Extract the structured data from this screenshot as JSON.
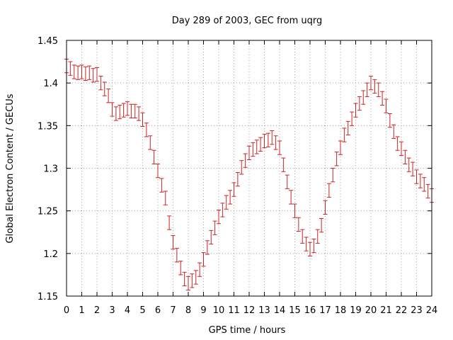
{
  "chart_data": {
    "type": "scatter",
    "title": "Day 289 of 2003, GEC from uqrg",
    "xlabel": "GPS time / hours",
    "ylabel": "Global Electron Content / GECUs",
    "xlim": [
      0,
      24
    ],
    "ylim": [
      1.15,
      1.45
    ],
    "grid": true,
    "xticks": [
      "0",
      "1",
      "2",
      "3",
      "4",
      "5",
      "6",
      "7",
      "8",
      "9",
      "10",
      "11",
      "12",
      "13",
      "14",
      "15",
      "16",
      "17",
      "18",
      "19",
      "20",
      "21",
      "22",
      "23",
      "24"
    ],
    "yticks": [
      "1.15",
      "1.2",
      "1.25",
      "1.3",
      "1.35",
      "1.4",
      "1.45"
    ],
    "color": "#cc2222",
    "error": 0.008,
    "series": [
      {
        "x": [
          0,
          0.25,
          0.5,
          0.75,
          1,
          1.25,
          1.5,
          1.75,
          2,
          2.25,
          2.5,
          2.75,
          3,
          3.25,
          3.5,
          3.75,
          4,
          4.25,
          4.5,
          4.75,
          5,
          5.25,
          5.5,
          5.75,
          6,
          6.25,
          6.5,
          6.75,
          7,
          7.25,
          7.5,
          7.75,
          8,
          8.25,
          8.5,
          8.75,
          9,
          9.25,
          9.5,
          9.75,
          10,
          10.25,
          10.5,
          10.75,
          11,
          11.25,
          11.5,
          11.75,
          12,
          12.25,
          12.5,
          12.75,
          13,
          13.25,
          13.5,
          13.75,
          14,
          14.25,
          14.5,
          14.75,
          15,
          15.25,
          15.5,
          15.75,
          16,
          16.25,
          16.5,
          16.75,
          17,
          17.25,
          17.5,
          17.75,
          18,
          18.25,
          18.5,
          18.75,
          19,
          19.25,
          19.5,
          19.75,
          20,
          20.25,
          20.5,
          20.75,
          21,
          21.25,
          21.5,
          21.75,
          22,
          22.25,
          22.5,
          22.75,
          23,
          23.25,
          23.5,
          23.75,
          24
        ],
        "y": [
          1.42,
          1.417,
          1.413,
          1.412,
          1.413,
          1.411,
          1.412,
          1.409,
          1.41,
          1.4,
          1.393,
          1.385,
          1.369,
          1.364,
          1.366,
          1.368,
          1.37,
          1.367,
          1.367,
          1.364,
          1.357,
          1.345,
          1.33,
          1.313,
          1.297,
          1.28,
          1.265,
          1.236,
          1.213,
          1.198,
          1.183,
          1.17,
          1.165,
          1.168,
          1.172,
          1.181,
          1.193,
          1.207,
          1.219,
          1.23,
          1.243,
          1.251,
          1.26,
          1.266,
          1.275,
          1.287,
          1.301,
          1.309,
          1.318,
          1.322,
          1.325,
          1.328,
          1.332,
          1.333,
          1.336,
          1.33,
          1.324,
          1.304,
          1.284,
          1.266,
          1.25,
          1.234,
          1.22,
          1.211,
          1.205,
          1.209,
          1.22,
          1.233,
          1.254,
          1.274,
          1.292,
          1.311,
          1.324,
          1.339,
          1.347,
          1.358,
          1.368,
          1.376,
          1.383,
          1.392,
          1.4,
          1.396,
          1.392,
          1.382,
          1.373,
          1.356,
          1.343,
          1.329,
          1.323,
          1.313,
          1.304,
          1.299,
          1.29,
          1.285,
          1.281,
          1.273,
          1.268
        ]
      }
    ]
  }
}
